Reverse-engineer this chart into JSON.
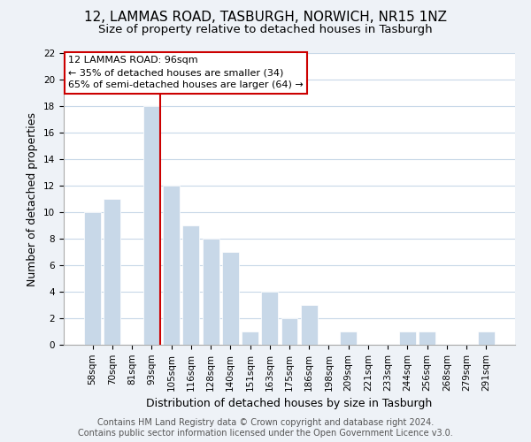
{
  "title": "12, LAMMAS ROAD, TASBURGH, NORWICH, NR15 1NZ",
  "subtitle": "Size of property relative to detached houses in Tasburgh",
  "xlabel": "Distribution of detached houses by size in Tasburgh",
  "ylabel": "Number of detached properties",
  "categories": [
    "58sqm",
    "70sqm",
    "81sqm",
    "93sqm",
    "105sqm",
    "116sqm",
    "128sqm",
    "140sqm",
    "151sqm",
    "163sqm",
    "175sqm",
    "186sqm",
    "198sqm",
    "209sqm",
    "221sqm",
    "233sqm",
    "244sqm",
    "256sqm",
    "268sqm",
    "279sqm",
    "291sqm"
  ],
  "values": [
    10,
    11,
    0,
    18,
    12,
    9,
    8,
    7,
    1,
    4,
    2,
    3,
    0,
    1,
    0,
    0,
    1,
    1,
    0,
    0,
    1
  ],
  "bar_color": "#c8d8e8",
  "highlight_line_color": "#cc0000",
  "highlight_bar_index": 3,
  "ylim": [
    0,
    22
  ],
  "yticks": [
    0,
    2,
    4,
    6,
    8,
    10,
    12,
    14,
    16,
    18,
    20,
    22
  ],
  "annotation_title": "12 LAMMAS ROAD: 96sqm",
  "annotation_line1": "← 35% of detached houses are smaller (34)",
  "annotation_line2": "65% of semi-detached houses are larger (64) →",
  "footer_line1": "Contains HM Land Registry data © Crown copyright and database right 2024.",
  "footer_line2": "Contains public sector information licensed under the Open Government Licence v3.0.",
  "bg_color": "#eef2f7",
  "plot_bg_color": "#ffffff",
  "grid_color": "#c8d8e8",
  "title_fontsize": 11,
  "subtitle_fontsize": 9.5,
  "axis_label_fontsize": 9,
  "tick_fontsize": 7.5,
  "footer_fontsize": 7
}
